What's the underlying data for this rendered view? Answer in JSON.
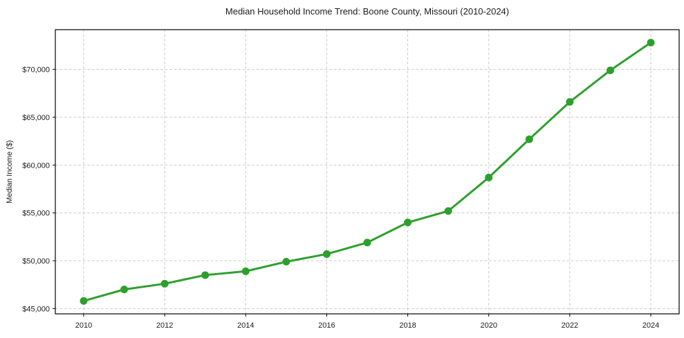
{
  "chart_data": {
    "type": "line",
    "title": "Median Household Income Trend: Boone County, Missouri (2010-2024)",
    "xlabel": "",
    "ylabel": "Median Income ($)",
    "series": [
      {
        "name": "Median Household Income",
        "x": [
          2010,
          2011,
          2012,
          2013,
          2014,
          2015,
          2016,
          2017,
          2018,
          2019,
          2020,
          2021,
          2022,
          2023,
          2024
        ],
        "values": [
          45800,
          47000,
          47600,
          48500,
          48900,
          49900,
          50700,
          51900,
          54000,
          55200,
          58700,
          62700,
          66600,
          69900,
          72800
        ]
      }
    ],
    "line_color": "#2ca02c",
    "marker": "circle",
    "grid": true,
    "grid_style": "dashed",
    "grid_color": "#cccccc",
    "legend": false,
    "xlim": [
      2009.3,
      2024.7
    ],
    "ylim": [
      44450,
      74150
    ],
    "xticks": [
      2010,
      2012,
      2014,
      2016,
      2018,
      2020,
      2022,
      2024
    ],
    "xtick_labels": [
      "2010",
      "2012",
      "2014",
      "2016",
      "2018",
      "2020",
      "2022",
      "2024"
    ],
    "yticks": [
      45000,
      50000,
      55000,
      60000,
      65000,
      70000
    ],
    "ytick_labels": [
      "$45,000",
      "$50,000",
      "$55,000",
      "$60,000",
      "$65,000",
      "$70,000"
    ]
  }
}
